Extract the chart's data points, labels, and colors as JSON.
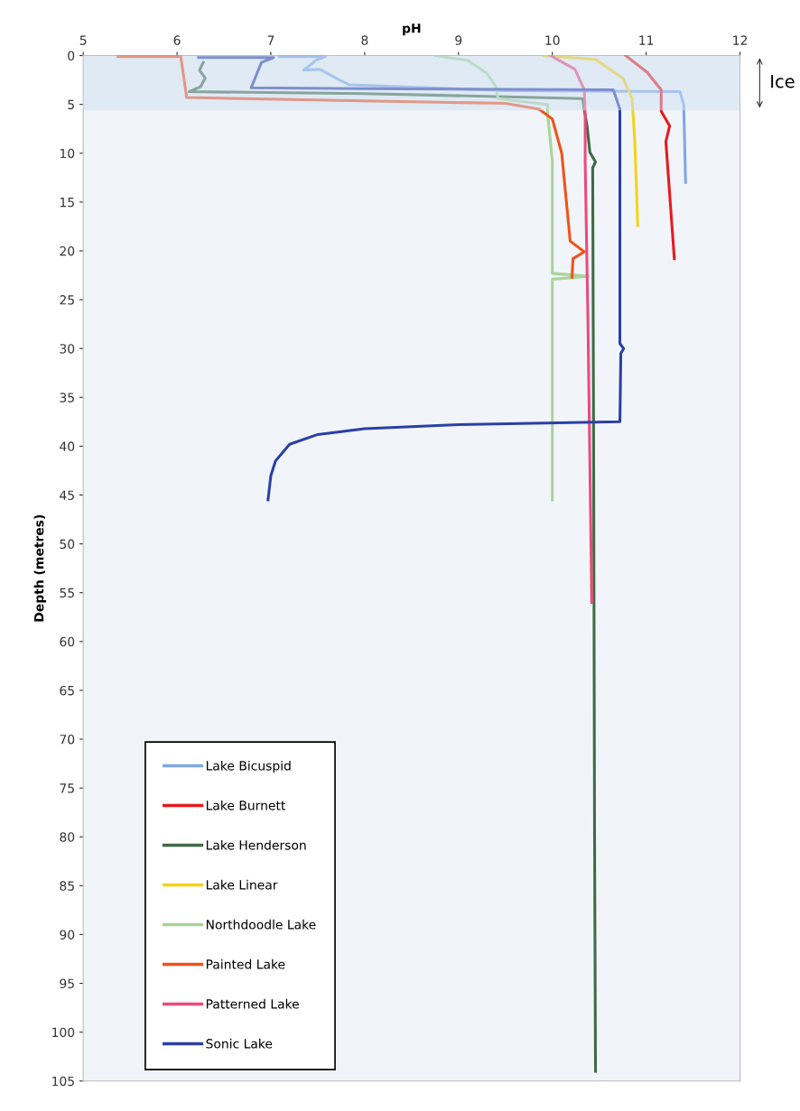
{
  "chart_data": {
    "type": "line",
    "xlabel": "pH",
    "ylabel": "Depth (metres)",
    "xlim": [
      5,
      12
    ],
    "xticks": [
      5,
      6,
      7,
      8,
      9,
      10,
      11,
      12
    ],
    "ylim": [
      105,
      0
    ],
    "yticks": [
      0,
      5,
      10,
      15,
      20,
      25,
      30,
      35,
      40,
      45,
      50,
      55,
      60,
      65,
      70,
      75,
      80,
      85,
      90,
      95,
      100,
      105
    ],
    "grid": false,
    "legend": "bottom left",
    "line_style": "solid",
    "marker": "none",
    "bands": [
      {
        "axis": "y",
        "from": 0,
        "to": 5.6,
        "label": "Ice",
        "color": "#cfe0f2"
      }
    ],
    "series": [
      {
        "name": "Lake Bicuspid",
        "color": "#7fa8e8",
        "x": [
          7.09,
          7.58,
          7.48,
          7.35,
          7.52,
          7.71,
          7.84,
          9.5,
          11.36,
          11.4,
          11.42
        ],
        "values": [
          0.1,
          0.1,
          0.5,
          1.5,
          1.4,
          2.4,
          3.0,
          3.6,
          3.7,
          5.0,
          13.0
        ]
      },
      {
        "name": "Lake Burnett",
        "color": "#e8191c",
        "x": [
          10.78,
          11.01,
          11.16,
          11.16,
          11.25,
          11.21,
          11.3
        ],
        "values": [
          0,
          1.7,
          3.5,
          5.7,
          7.2,
          8.8,
          20.8
        ]
      },
      {
        "name": "Lake Henderson",
        "color": "#3f6a46",
        "x": [
          6.28,
          6.24,
          6.3,
          6.25,
          6.13,
          8.0,
          10.32,
          10.37,
          10.4,
          10.46,
          10.43,
          10.44,
          10.45,
          10.46
        ],
        "values": [
          0.7,
          1.5,
          2.3,
          3.2,
          3.7,
          3.9,
          4.4,
          7.2,
          9.9,
          10.9,
          11.5,
          40,
          80,
          104
        ]
      },
      {
        "name": "Lake Linear",
        "color": "#f5d21a",
        "x": [
          9.91,
          10.46,
          10.75,
          10.85,
          10.88,
          10.91
        ],
        "values": [
          0,
          0.4,
          2.3,
          4.4,
          9.0,
          17.4
        ]
      },
      {
        "name": "Northdoodle Lake",
        "color": "#a9d49a",
        "x": [
          8.75,
          9.1,
          9.3,
          9.4,
          9.42,
          9.95,
          9.95,
          10.0,
          10.0,
          10.38,
          10.0,
          10.0
        ],
        "values": [
          0,
          0.5,
          1.8,
          3.2,
          4.4,
          5.0,
          6.0,
          10.8,
          22.3,
          22.6,
          22.9,
          45.5
        ]
      },
      {
        "name": "Painted Lake",
        "color": "#f0521c",
        "x": [
          5.37,
          6.04,
          6.1,
          6.1,
          9.5,
          9.86,
          10.0,
          10.1,
          10.19,
          10.34,
          10.22,
          10.21
        ],
        "values": [
          0.1,
          0.1,
          4.1,
          4.3,
          4.9,
          5.5,
          6.5,
          10.0,
          19.0,
          20.1,
          20.8,
          22.7
        ]
      },
      {
        "name": "Patterned Lake",
        "color": "#ec4a7c",
        "x": [
          9.98,
          10.24,
          10.34,
          10.35,
          10.35,
          10.38,
          10.42
        ],
        "values": [
          0,
          1.4,
          3.5,
          6.0,
          10.9,
          27.5,
          56.0
        ]
      },
      {
        "name": "Sonic Lake",
        "color": "#2b3fa6",
        "x": [
          6.23,
          7.03,
          6.9,
          6.79,
          8.0,
          10.65,
          10.72,
          10.72,
          10.76,
          10.73,
          10.72,
          9.0,
          8.0,
          7.5,
          7.2,
          7.05,
          7.0,
          6.97
        ],
        "values": [
          0.2,
          0.2,
          0.7,
          3.3,
          3.4,
          3.5,
          5.5,
          29.5,
          30.0,
          30.5,
          37.5,
          37.8,
          38.2,
          38.8,
          39.8,
          41.5,
          43.0,
          45.5
        ]
      }
    ]
  }
}
